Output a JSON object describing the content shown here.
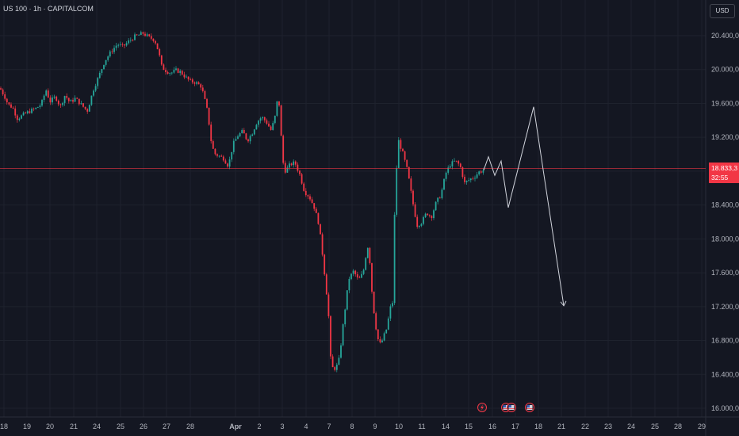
{
  "header": {
    "symbol_title": "US 100 · 1h · CAPITALCOM",
    "currency": "USD"
  },
  "last_price": {
    "value": "18.833,3",
    "countdown": "32:55"
  },
  "colors": {
    "background": "#141722",
    "up": "#26a69a",
    "down": "#f23645",
    "grid": "#1e222d",
    "projection": "#d1d4dc"
  },
  "event_icons": [
    "lightning-event-icon",
    "us-flag-event-icon",
    "us-flag-event-icon",
    "us-flag-event-icon"
  ],
  "chart_data": {
    "type": "candlestick",
    "ylim": [
      15950,
      20650
    ],
    "y_ticks": [
      "16.000,0",
      "16.400,0",
      "16.800,0",
      "17.200,0",
      "17.600,0",
      "18.000,0",
      "18.400,0",
      "18.800,0",
      "19.200,0",
      "19.600,0",
      "20.000,0",
      "20.400,0"
    ],
    "y_tick_values": [
      16000,
      16400,
      16800,
      17200,
      17600,
      18000,
      18400,
      18800,
      19200,
      19600,
      20000,
      20400
    ],
    "x_ticks": [
      "18",
      "19",
      "20",
      "21",
      "24",
      "25",
      "26",
      "27",
      "28",
      "Apr",
      "2",
      "3",
      "4",
      "7",
      "8",
      "9",
      "10",
      "11",
      "14",
      "15",
      "16",
      "17",
      "18",
      "21",
      "22",
      "23",
      "24",
      "25",
      "28",
      "29"
    ],
    "price_path": [
      [
        0,
        19780
      ],
      [
        6,
        19680
      ],
      [
        10,
        19590
      ],
      [
        16,
        19550
      ],
      [
        22,
        19420
      ],
      [
        30,
        19470
      ],
      [
        38,
        19510
      ],
      [
        45,
        19540
      ],
      [
        52,
        19590
      ],
      [
        58,
        19760
      ],
      [
        63,
        19620
      ],
      [
        70,
        19680
      ],
      [
        76,
        19560
      ],
      [
        82,
        19700
      ],
      [
        88,
        19610
      ],
      [
        95,
        19660
      ],
      [
        102,
        19590
      ],
      [
        110,
        19510
      ],
      [
        118,
        19770
      ],
      [
        125,
        19930
      ],
      [
        132,
        20100
      ],
      [
        140,
        20210
      ],
      [
        148,
        20300
      ],
      [
        155,
        20270
      ],
      [
        162,
        20330
      ],
      [
        170,
        20390
      ],
      [
        176,
        20410
      ],
      [
        180,
        20430
      ],
      [
        188,
        20380
      ],
      [
        195,
        20350
      ],
      [
        200,
        20210
      ],
      [
        204,
        20030
      ],
      [
        210,
        19980
      ],
      [
        216,
        19960
      ],
      [
        222,
        19990
      ],
      [
        228,
        19970
      ],
      [
        234,
        19910
      ],
      [
        240,
        19860
      ],
      [
        246,
        19850
      ],
      [
        254,
        19800
      ],
      [
        258,
        19650
      ],
      [
        262,
        19490
      ],
      [
        266,
        19170
      ],
      [
        270,
        19010
      ],
      [
        276,
        18980
      ],
      [
        282,
        18950
      ],
      [
        288,
        18860
      ],
      [
        294,
        19120
      ],
      [
        300,
        19220
      ],
      [
        306,
        19270
      ],
      [
        312,
        19160
      ],
      [
        318,
        19250
      ],
      [
        324,
        19380
      ],
      [
        330,
        19440
      ],
      [
        336,
        19380
      ],
      [
        342,
        19280
      ],
      [
        347,
        19450
      ],
      [
        351,
        19720
      ],
      [
        354,
        19320
      ],
      [
        356,
        18940
      ],
      [
        360,
        18800
      ],
      [
        366,
        18880
      ],
      [
        372,
        18900
      ],
      [
        378,
        18760
      ],
      [
        384,
        18560
      ],
      [
        390,
        18500
      ],
      [
        396,
        18380
      ],
      [
        402,
        18180
      ],
      [
        406,
        17880
      ],
      [
        410,
        17530
      ],
      [
        414,
        17160
      ],
      [
        417,
        16590
      ],
      [
        420,
        16460
      ],
      [
        424,
        16480
      ],
      [
        428,
        16590
      ],
      [
        432,
        16930
      ],
      [
        436,
        17240
      ],
      [
        440,
        17530
      ],
      [
        446,
        17620
      ],
      [
        452,
        17510
      ],
      [
        458,
        17600
      ],
      [
        462,
        17840
      ],
      [
        465,
        17950
      ],
      [
        468,
        17480
      ],
      [
        472,
        17100
      ],
      [
        476,
        16830
      ],
      [
        480,
        16750
      ],
      [
        484,
        16850
      ],
      [
        488,
        16950
      ],
      [
        492,
        17180
      ],
      [
        495,
        17250
      ],
      [
        498,
        18430
      ],
      [
        502,
        19180
      ],
      [
        508,
        19010
      ],
      [
        514,
        18800
      ],
      [
        520,
        18460
      ],
      [
        526,
        18160
      ],
      [
        532,
        18200
      ],
      [
        538,
        18310
      ],
      [
        544,
        18260
      ],
      [
        550,
        18430
      ],
      [
        556,
        18520
      ],
      [
        562,
        18770
      ],
      [
        568,
        18880
      ],
      [
        574,
        18920
      ],
      [
        580,
        18870
      ],
      [
        586,
        18660
      ],
      [
        592,
        18700
      ],
      [
        598,
        18730
      ],
      [
        604,
        18790
      ],
      [
        610,
        18810
      ]
    ],
    "projection_path": [
      [
        610,
        18810
      ],
      [
        616,
        18970
      ],
      [
        624,
        18750
      ],
      [
        632,
        18920
      ],
      [
        641,
        18370
      ],
      [
        673,
        19560
      ],
      [
        711,
        17210
      ]
    ],
    "current_price": 18833.3
  }
}
